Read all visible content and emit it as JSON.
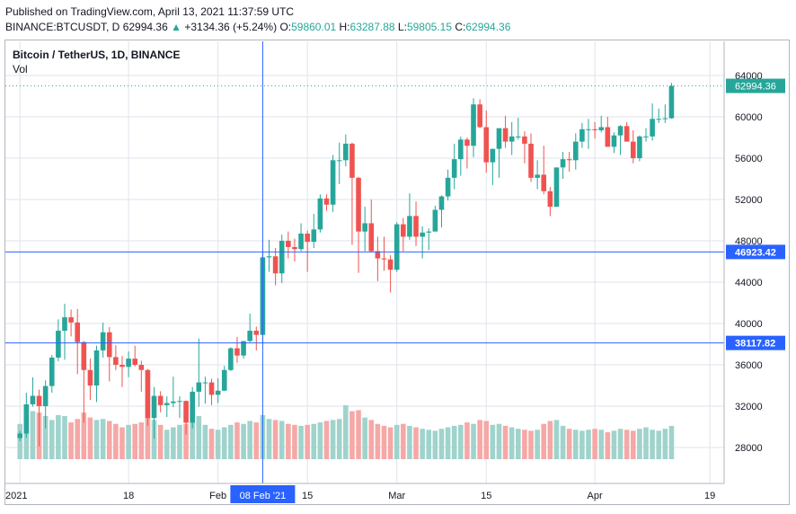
{
  "header": {
    "published": "Published on TradingView.com, April 13, 2021 11:37:59 UTC",
    "symbol": "BINANCE:BTCUSDT, D",
    "last": "62994.36",
    "arrow": "▲",
    "change": "+3134.36 (+5.24%)",
    "o_label": "O:",
    "o_val": "59860.01",
    "h_label": "H:",
    "h_val": "63287.88",
    "l_label": "L:",
    "l_val": "59805.15",
    "c_label": "C:",
    "c_val": "62994.36"
  },
  "legend": {
    "title": "Bitcoin / TetherUS, 1D, BINANCE",
    "vol": "Vol"
  },
  "colors": {
    "up": "#26a69a",
    "down": "#ef5350",
    "up_vol": "#9fd3cc",
    "down_vol": "#f5a8a6",
    "crosshair": "#2962ff",
    "axis_text": "#131722",
    "grid": "#e0e3eb"
  },
  "chart_data": {
    "type": "candlestick",
    "symbol": "BTCUSDT",
    "interval": "1D",
    "date_range": [
      "2021-01-01",
      "2021-04-13"
    ],
    "y_ticks": [
      28000,
      32000,
      36000,
      40000,
      44000,
      48000,
      52000,
      56000,
      60000,
      64000
    ],
    "ylim": [
      24000,
      66000
    ],
    "x_ticks": [
      {
        "label": "2021",
        "date": "2021-01-01"
      },
      {
        "label": "18",
        "date": "2021-01-18"
      },
      {
        "label": "Feb",
        "date": "2021-02-01"
      },
      {
        "label": "15",
        "date": "2021-02-15"
      },
      {
        "label": "Mar",
        "date": "2021-03-01"
      },
      {
        "label": "15",
        "date": "2021-03-15"
      },
      {
        "label": "Apr",
        "date": "2021-04-01"
      },
      {
        "label": "19",
        "date": "2021-04-19"
      }
    ],
    "price_labels": [
      {
        "value": 62994.36,
        "text": "62994.36",
        "kind": "last"
      },
      {
        "value": 46923.42,
        "text": "46923.42",
        "kind": "crosshair"
      },
      {
        "value": 38117.82,
        "text": "38117.82",
        "kind": "marker"
      }
    ],
    "crosshair_date": {
      "date": "2021-02-08",
      "text": "08 Feb '21"
    },
    "ohlc": [
      [
        "2021-01-01",
        28920,
        29600,
        28620,
        29350
      ],
      [
        "2021-01-02",
        29350,
        33300,
        28950,
        32180
      ],
      [
        "2021-01-03",
        32180,
        34800,
        31950,
        33000
      ],
      [
        "2021-01-04",
        33000,
        33600,
        28100,
        32000
      ],
      [
        "2021-01-05",
        32000,
        34500,
        29850,
        33950
      ],
      [
        "2021-01-06",
        33950,
        36950,
        33300,
        36700
      ],
      [
        "2021-01-07",
        36700,
        40400,
        36350,
        39300
      ],
      [
        "2021-01-08",
        39300,
        41900,
        36500,
        40600
      ],
      [
        "2021-01-09",
        40600,
        41350,
        38750,
        40100
      ],
      [
        "2021-01-10",
        40100,
        41400,
        35100,
        38200
      ],
      [
        "2021-01-11",
        38200,
        38300,
        30400,
        35500
      ],
      [
        "2021-01-12",
        35500,
        36600,
        32600,
        34000
      ],
      [
        "2021-01-13",
        34000,
        37850,
        32400,
        37400
      ],
      [
        "2021-01-14",
        37400,
        40100,
        36700,
        39150
      ],
      [
        "2021-01-15",
        39150,
        39650,
        34400,
        36750
      ],
      [
        "2021-01-16",
        36750,
        37900,
        35500,
        36000
      ],
      [
        "2021-01-17",
        36000,
        36850,
        33850,
        35800
      ],
      [
        "2021-01-18",
        35800,
        37300,
        34800,
        36600
      ],
      [
        "2021-01-19",
        36600,
        37850,
        35850,
        36000
      ],
      [
        "2021-01-20",
        36000,
        36400,
        33400,
        35500
      ],
      [
        "2021-01-21",
        35500,
        35600,
        30100,
        30850
      ],
      [
        "2021-01-22",
        30850,
        33850,
        28850,
        33000
      ],
      [
        "2021-01-23",
        33000,
        33450,
        31400,
        32100
      ],
      [
        "2021-01-24",
        32100,
        32950,
        30950,
        32300
      ],
      [
        "2021-01-25",
        32300,
        34850,
        31900,
        32450
      ],
      [
        "2021-01-26",
        32450,
        32950,
        30850,
        32500
      ],
      [
        "2021-01-27",
        32500,
        32550,
        29250,
        30400
      ],
      [
        "2021-01-28",
        30400,
        33850,
        29850,
        33400
      ],
      [
        "2021-01-29",
        33400,
        38550,
        31950,
        34300
      ],
      [
        "2021-01-30",
        34300,
        34850,
        32250,
        34300
      ],
      [
        "2021-01-31",
        34300,
        34650,
        32100,
        33100
      ],
      [
        "2021-02-01",
        33100,
        34700,
        32300,
        33500
      ],
      [
        "2021-02-02",
        33500,
        35900,
        33450,
        35500
      ],
      [
        "2021-02-03",
        35500,
        37700,
        35400,
        37600
      ],
      [
        "2021-02-04",
        37600,
        38700,
        36200,
        36900
      ],
      [
        "2021-02-05",
        36900,
        38300,
        36600,
        38300
      ],
      [
        "2021-02-06",
        38300,
        40950,
        38200,
        39300
      ],
      [
        "2021-02-07",
        39300,
        39700,
        37400,
        38900
      ],
      [
        "2021-02-08",
        38900,
        46800,
        38000,
        46400
      ],
      [
        "2021-02-09",
        46400,
        48100,
        45000,
        46500
      ],
      [
        "2021-02-10",
        46500,
        47300,
        43700,
        44850
      ],
      [
        "2021-02-11",
        44850,
        48600,
        43900,
        48000
      ],
      [
        "2021-02-12",
        48000,
        48900,
        46300,
        47400
      ],
      [
        "2021-02-13",
        47400,
        48200,
        46000,
        47200
      ],
      [
        "2021-02-14",
        47200,
        49700,
        47000,
        48700
      ],
      [
        "2021-02-15",
        48700,
        49000,
        45000,
        47900
      ],
      [
        "2021-02-16",
        47900,
        50600,
        47300,
        49100
      ],
      [
        "2021-02-17",
        49100,
        52500,
        48800,
        52100
      ],
      [
        "2021-02-18",
        52100,
        52500,
        50900,
        51500
      ],
      [
        "2021-02-19",
        51500,
        56300,
        50800,
        55800
      ],
      [
        "2021-02-20",
        55800,
        57500,
        53500,
        55800
      ],
      [
        "2021-02-21",
        55800,
        58300,
        55200,
        57400
      ],
      [
        "2021-02-22",
        57400,
        57500,
        47600,
        54100
      ],
      [
        "2021-02-23",
        54100,
        54200,
        44900,
        48900
      ],
      [
        "2021-02-24",
        48900,
        51300,
        47000,
        49700
      ],
      [
        "2021-02-25",
        49700,
        52000,
        46900,
        47000
      ],
      [
        "2021-02-26",
        47000,
        48400,
        44100,
        46300
      ],
      [
        "2021-02-27",
        46300,
        48400,
        45100,
        46200
      ],
      [
        "2021-02-28",
        46200,
        46600,
        43000,
        45200
      ],
      [
        "2021-03-01",
        45200,
        49800,
        45000,
        49600
      ],
      [
        "2021-03-02",
        49600,
        50200,
        47000,
        48400
      ],
      [
        "2021-03-03",
        48400,
        52600,
        48100,
        50400
      ],
      [
        "2021-03-04",
        50400,
        51800,
        47500,
        48400
      ],
      [
        "2021-03-05",
        48400,
        49400,
        46300,
        48800
      ],
      [
        "2021-03-06",
        48800,
        49200,
        47100,
        48900
      ],
      [
        "2021-03-07",
        48900,
        51400,
        48900,
        51000
      ],
      [
        "2021-03-08",
        51000,
        52400,
        49300,
        52300
      ],
      [
        "2021-03-09",
        52300,
        54900,
        51900,
        54100
      ],
      [
        "2021-03-10",
        54100,
        57400,
        53000,
        55900
      ],
      [
        "2021-03-11",
        55900,
        58100,
        54300,
        57800
      ],
      [
        "2021-03-12",
        57800,
        58000,
        55000,
        57200
      ],
      [
        "2021-03-13",
        57200,
        61800,
        56100,
        61200
      ],
      [
        "2021-03-14",
        61200,
        61700,
        58900,
        59000
      ],
      [
        "2021-03-15",
        59000,
        60600,
        54600,
        55600
      ],
      [
        "2021-03-16",
        55600,
        56900,
        53400,
        56900
      ],
      [
        "2021-03-17",
        56900,
        58900,
        54100,
        58900
      ],
      [
        "2021-03-18",
        58900,
        60100,
        57000,
        57600
      ],
      [
        "2021-03-19",
        57600,
        59500,
        56300,
        58100
      ],
      [
        "2021-03-20",
        58100,
        59900,
        57800,
        58100
      ],
      [
        "2021-03-21",
        58100,
        58600,
        55500,
        57400
      ],
      [
        "2021-03-22",
        57400,
        58400,
        53700,
        54100
      ],
      [
        "2021-03-23",
        54100,
        55800,
        53000,
        54400
      ],
      [
        "2021-03-24",
        54400,
        57200,
        52500,
        52800
      ],
      [
        "2021-03-25",
        52800,
        53200,
        50400,
        51300
      ],
      [
        "2021-03-26",
        51300,
        55100,
        51300,
        55100
      ],
      [
        "2021-03-27",
        55100,
        56600,
        54000,
        55900
      ],
      [
        "2021-03-28",
        55900,
        56600,
        54700,
        55800
      ],
      [
        "2021-03-29",
        55800,
        58400,
        54900,
        57600
      ],
      [
        "2021-03-30",
        57600,
        59400,
        57000,
        58800
      ],
      [
        "2021-03-31",
        58800,
        59800,
        56900,
        58800
      ],
      [
        "2021-04-01",
        58800,
        59500,
        57900,
        58700
      ],
      [
        "2021-04-02",
        58700,
        60100,
        58500,
        59000
      ],
      [
        "2021-04-03",
        59000,
        60000,
        57100,
        57100
      ],
      [
        "2021-04-04",
        57100,
        58500,
        56500,
        58200
      ],
      [
        "2021-04-05",
        58200,
        59200,
        56300,
        59100
      ],
      [
        "2021-04-06",
        59100,
        59500,
        57600,
        57600
      ],
      [
        "2021-04-07",
        57600,
        58700,
        55500,
        56000
      ],
      [
        "2021-04-08",
        56000,
        58200,
        55700,
        58100
      ],
      [
        "2021-04-09",
        58100,
        58900,
        57600,
        58100
      ],
      [
        "2021-04-10",
        58100,
        61300,
        57700,
        59800
      ],
      [
        "2021-04-11",
        59800,
        60800,
        59400,
        59800
      ],
      [
        "2021-04-12",
        59800,
        61200,
        59400,
        59860
      ],
      [
        "2021-04-13",
        59860.01,
        63287.88,
        59805.15,
        62994.36
      ]
    ],
    "volume": [
      72,
      78,
      98,
      95,
      88,
      80,
      90,
      88,
      75,
      82,
      95,
      85,
      80,
      82,
      78,
      72,
      65,
      70,
      72,
      75,
      85,
      80,
      70,
      60,
      65,
      70,
      72,
      82,
      88,
      70,
      62,
      60,
      65,
      70,
      75,
      72,
      78,
      75,
      90,
      82,
      80,
      78,
      72,
      70,
      68,
      70,
      72,
      75,
      78,
      80,
      82,
      110,
      98,
      100,
      85,
      80,
      72,
      68,
      65,
      70,
      72,
      68,
      65,
      62,
      60,
      58,
      62,
      65,
      68,
      70,
      75,
      72,
      80,
      78,
      70,
      72,
      68,
      65,
      62,
      60,
      58,
      60,
      72,
      78,
      80,
      68,
      62,
      60,
      58,
      60,
      62,
      60,
      55,
      58,
      62,
      60,
      58,
      62,
      65,
      60,
      58,
      62,
      68
    ]
  }
}
